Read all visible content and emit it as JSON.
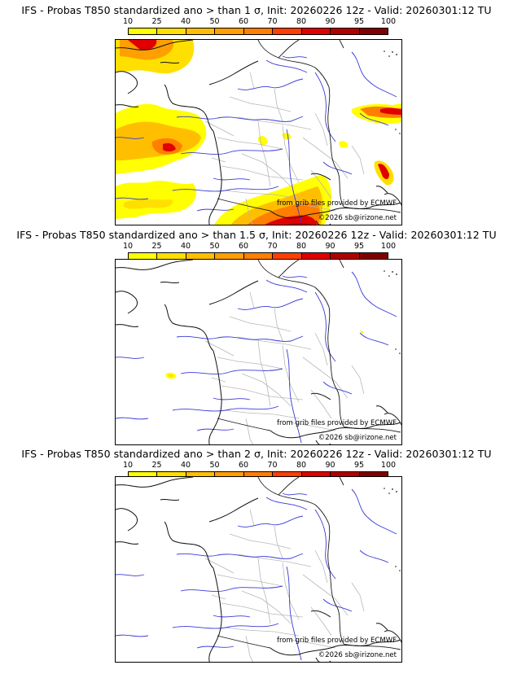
{
  "colorbar": {
    "ticks": [
      "10",
      "25",
      "40",
      "50",
      "60",
      "70",
      "80",
      "90",
      "95",
      "100"
    ],
    "colors": [
      "#ffff00",
      "#ffdf00",
      "#ffbf00",
      "#ff9f00",
      "#ff7f00",
      "#ff3f00",
      "#e00000",
      "#b00000",
      "#800000"
    ]
  },
  "credits": {
    "source": "from grib files provided by ECMWF",
    "copyright": "©2026 sb@irizone.net"
  },
  "panels": [
    {
      "title": "IFS - Probas T850  standardized ano > than 1 σ, Init: 20260226 12z - Valid: 20260301:12 TU"
    },
    {
      "title": "IFS - Probas T850  standardized ano > than 1.5 σ, Init: 20260226 12z - Valid: 20260301:12 TU"
    },
    {
      "title": "IFS - Probas T850  standardized ano > than 2 σ, Init: 20260226 12z - Valid: 20260301:12 TU"
    }
  ]
}
